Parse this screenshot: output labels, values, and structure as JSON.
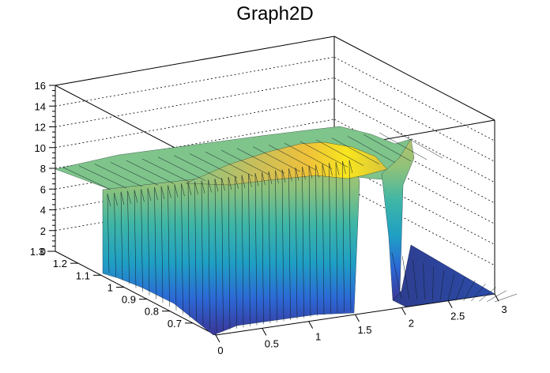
{
  "chart_data": {
    "type": "surface",
    "title": "Graph2D",
    "xlabel": "",
    "ylabel": "",
    "zlabel": "",
    "xlim": [
      0,
      3
    ],
    "ylim": [
      0.6,
      1.3
    ],
    "zlim": [
      0,
      16
    ],
    "x_ticks": [
      "0",
      "0.5",
      "1",
      "1.5",
      "2",
      "2.5",
      "3"
    ],
    "y_ticks": [
      "0.7",
      "0.8",
      "0.9",
      "1",
      "1.1",
      "1.2",
      "1.3"
    ],
    "z_ticks": [
      "0",
      "2",
      "4",
      "6",
      "8",
      "10",
      "12",
      "14",
      "16"
    ],
    "grid": true,
    "colormap": [
      "#352a87",
      "#2c72d9",
      "#21a8b8",
      "#7fbf7b",
      "#e3b83a",
      "#f9fb0e"
    ],
    "surface_summary": {
      "plateau_z_back": 8,
      "plateau_z_near_x2": 12,
      "peak_z": 12,
      "zero_region_x": [
        1.45,
        1.7
      ],
      "floor_region_x": [
        2.05,
        3
      ]
    }
  }
}
